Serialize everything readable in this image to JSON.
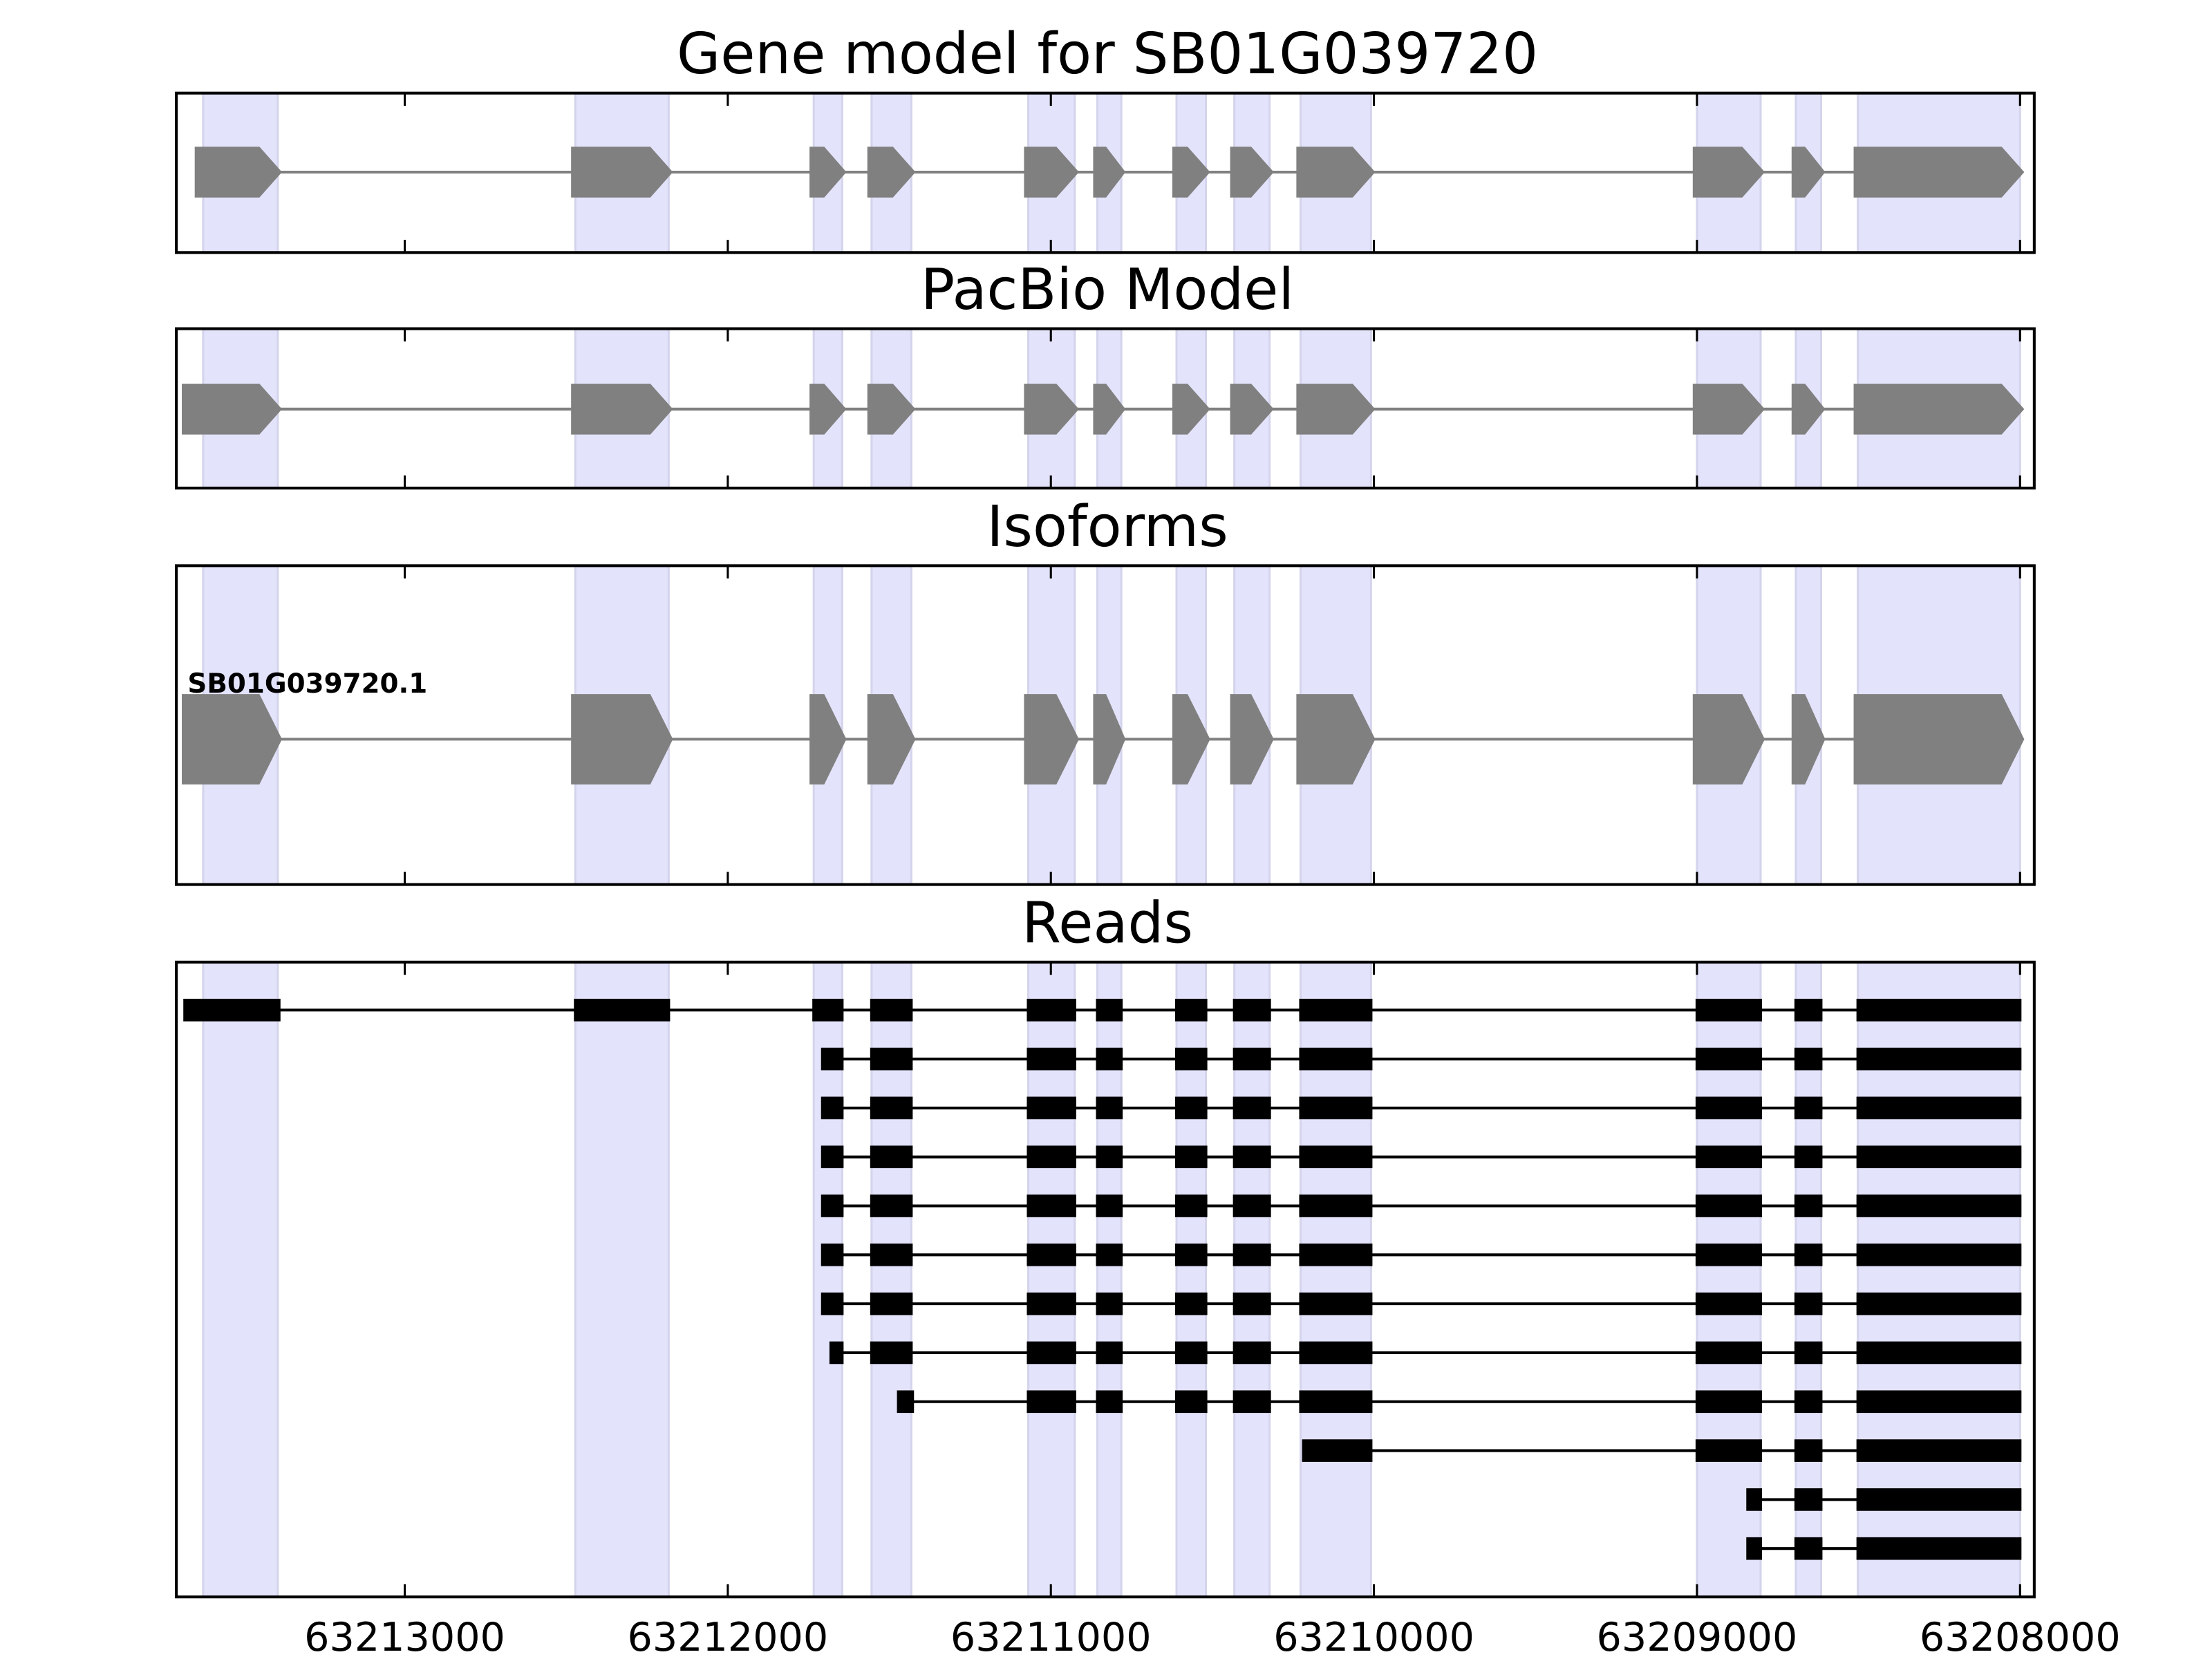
{
  "chart_data": {
    "type": "gene-structure",
    "xlim": [
      63213707,
      63207956
    ],
    "xticks": [
      63213000,
      63212000,
      63211000,
      63210000,
      63209000,
      63208000
    ],
    "xtick_labels": [
      "63213000",
      "63212000",
      "63211000",
      "63210000",
      "63209000",
      "63208000"
    ],
    "colors": {
      "highlight": "#e3e3fb",
      "gene": "#808080",
      "read": "#000000"
    },
    "highlight_exons": [
      [
        63213624,
        63213393
      ],
      [
        63212472,
        63212183
      ],
      [
        63211734,
        63211646
      ],
      [
        63211555,
        63211432
      ],
      [
        63211070,
        63210926
      ],
      [
        63210856,
        63210782
      ],
      [
        63210611,
        63210520
      ],
      [
        63210432,
        63210323
      ],
      [
        63210227,
        63210009
      ],
      [
        63209000,
        63208803
      ],
      [
        63208694,
        63208616
      ],
      [
        63208502,
        63208000
      ]
    ],
    "panels": [
      {
        "title": "Gene model for SB01G039720",
        "kind": "gene",
        "first_exon_start": 63213637
      },
      {
        "title": "PacBio Model",
        "kind": "gene",
        "first_exon_start": 63213677
      },
      {
        "title": "Isoforms",
        "kind": "isoform",
        "first_exon_start": 63213677,
        "isoforms": [
          "SB01G039720.1"
        ]
      },
      {
        "title": "Reads",
        "kind": "reads"
      }
    ],
    "reads": [
      {
        "first": [
          63213681,
          63213389
        ],
        "next_exon": 1
      },
      {
        "first": [
          63211707,
          63211646
        ],
        "next_exon": 3
      },
      {
        "first": [
          63211707,
          63211646
        ],
        "next_exon": 3
      },
      {
        "first": [
          63211707,
          63211646
        ],
        "next_exon": 3
      },
      {
        "first": [
          63211707,
          63211646
        ],
        "next_exon": 3
      },
      {
        "first": [
          63211707,
          63211646
        ],
        "next_exon": 3
      },
      {
        "first": [
          63211707,
          63211646
        ],
        "next_exon": 3
      },
      {
        "first": [
          63211681,
          63211646
        ],
        "next_exon": 3
      },
      {
        "first": [
          63211472,
          63211428
        ],
        "next_exon": 4
      },
      {
        "first": [
          63210218,
          63210009
        ],
        "next_exon": 9
      },
      {
        "first": [
          63208843,
          63208803
        ],
        "next_exon": 10
      },
      {
        "first": [
          63208843,
          63208803
        ],
        "next_exon": 10
      }
    ]
  }
}
